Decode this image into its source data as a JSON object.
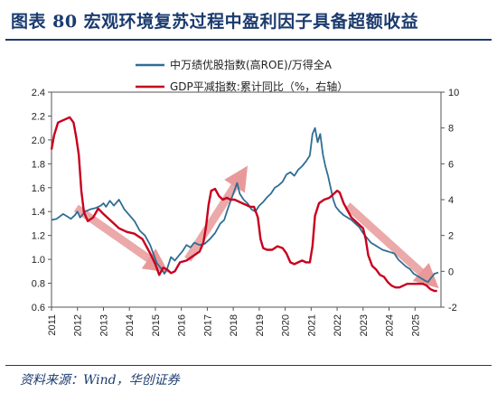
{
  "header": {
    "title": "图表 80   宏观环境复苏过程中盈利因子具备超额收益"
  },
  "source": {
    "text": "资料来源：Wind，华创证券"
  },
  "colors": {
    "index_line": "#2f6e93",
    "gdp_line": "#c8001e",
    "arrows": "#e89a9a",
    "title": "#1b3b6f"
  },
  "chart_data": {
    "type": "line",
    "x_axis": {
      "range": [
        2011,
        2026
      ],
      "ticks": [
        "2011",
        "2012",
        "2013",
        "2014",
        "2015",
        "2016",
        "2017",
        "2018",
        "2019",
        "2020",
        "2021",
        "2022",
        "2023",
        "2024",
        "2025"
      ]
    },
    "y_left": {
      "range": [
        0.6,
        2.4
      ],
      "ticks": [
        "0.6",
        "0.8",
        "1.0",
        "1.2",
        "1.4",
        "1.6",
        "1.8",
        "2.0",
        "2.2",
        "2.4"
      ]
    },
    "y_right": {
      "range": [
        -2,
        10
      ],
      "ticks": [
        "-2",
        "0",
        "2",
        "4",
        "6",
        "8",
        "10"
      ]
    },
    "legend": {
      "position": "top-center"
    },
    "series": [
      {
        "name": "中万绩优股指数(高ROE)/万得全A",
        "axis": "left",
        "points": [
          [
            2011.0,
            1.33
          ],
          [
            2011.2,
            1.34
          ],
          [
            2011.45,
            1.38
          ],
          [
            2011.6,
            1.36
          ],
          [
            2011.75,
            1.34
          ],
          [
            2011.9,
            1.37
          ],
          [
            2012.0,
            1.4
          ],
          [
            2012.1,
            1.35
          ],
          [
            2012.3,
            1.4
          ],
          [
            2012.5,
            1.42
          ],
          [
            2012.7,
            1.43
          ],
          [
            2012.9,
            1.45
          ],
          [
            2013.0,
            1.47
          ],
          [
            2013.1,
            1.44
          ],
          [
            2013.25,
            1.49
          ],
          [
            2013.4,
            1.45
          ],
          [
            2013.6,
            1.5
          ],
          [
            2013.8,
            1.42
          ],
          [
            2014.0,
            1.37
          ],
          [
            2014.2,
            1.32
          ],
          [
            2014.4,
            1.24
          ],
          [
            2014.6,
            1.2
          ],
          [
            2014.8,
            1.12
          ],
          [
            2014.95,
            1.03
          ],
          [
            2015.05,
            0.97
          ],
          [
            2015.2,
            0.93
          ],
          [
            2015.35,
            0.88
          ],
          [
            2015.45,
            0.92
          ],
          [
            2015.6,
            1.02
          ],
          [
            2015.75,
            0.99
          ],
          [
            2015.9,
            1.03
          ],
          [
            2016.05,
            1.07
          ],
          [
            2016.2,
            1.12
          ],
          [
            2016.35,
            1.1
          ],
          [
            2016.5,
            1.14
          ],
          [
            2016.7,
            1.12
          ],
          [
            2016.9,
            1.13
          ],
          [
            2017.1,
            1.17
          ],
          [
            2017.3,
            1.22
          ],
          [
            2017.5,
            1.3
          ],
          [
            2017.65,
            1.33
          ],
          [
            2017.8,
            1.43
          ],
          [
            2017.95,
            1.52
          ],
          [
            2018.05,
            1.58
          ],
          [
            2018.15,
            1.64
          ],
          [
            2018.25,
            1.55
          ],
          [
            2018.4,
            1.5
          ],
          [
            2018.55,
            1.47
          ],
          [
            2018.7,
            1.42
          ],
          [
            2018.85,
            1.4
          ],
          [
            2019.0,
            1.45
          ],
          [
            2019.15,
            1.48
          ],
          [
            2019.3,
            1.52
          ],
          [
            2019.45,
            1.55
          ],
          [
            2019.6,
            1.6
          ],
          [
            2019.75,
            1.62
          ],
          [
            2019.9,
            1.65
          ],
          [
            2020.05,
            1.71
          ],
          [
            2020.2,
            1.73
          ],
          [
            2020.35,
            1.7
          ],
          [
            2020.5,
            1.75
          ],
          [
            2020.65,
            1.78
          ],
          [
            2020.8,
            1.82
          ],
          [
            2020.95,
            1.87
          ],
          [
            2021.05,
            2.05
          ],
          [
            2021.15,
            2.1
          ],
          [
            2021.25,
            1.98
          ],
          [
            2021.35,
            2.05
          ],
          [
            2021.45,
            1.88
          ],
          [
            2021.55,
            1.78
          ],
          [
            2021.65,
            1.7
          ],
          [
            2021.75,
            1.6
          ],
          [
            2021.85,
            1.5
          ],
          [
            2021.95,
            1.44
          ],
          [
            2022.1,
            1.4
          ],
          [
            2022.25,
            1.37
          ],
          [
            2022.4,
            1.35
          ],
          [
            2022.55,
            1.33
          ],
          [
            2022.7,
            1.3
          ],
          [
            2022.85,
            1.27
          ],
          [
            2023.0,
            1.22
          ],
          [
            2023.15,
            1.18
          ],
          [
            2023.3,
            1.14
          ],
          [
            2023.45,
            1.12
          ],
          [
            2023.6,
            1.1
          ],
          [
            2023.75,
            1.08
          ],
          [
            2023.9,
            1.07
          ],
          [
            2024.05,
            1.06
          ],
          [
            2024.2,
            1.05
          ],
          [
            2024.35,
            1.0
          ],
          [
            2024.5,
            0.97
          ],
          [
            2024.65,
            0.94
          ],
          [
            2024.8,
            0.92
          ],
          [
            2024.95,
            0.88
          ],
          [
            2025.1,
            0.86
          ],
          [
            2025.25,
            0.84
          ],
          [
            2025.4,
            0.82
          ],
          [
            2025.5,
            0.81
          ],
          [
            2025.6,
            0.84
          ],
          [
            2025.75,
            0.88
          ],
          [
            2025.9,
            0.89
          ]
        ]
      },
      {
        "name": "GDP平减指数:累计同比（%，右轴）",
        "axis": "right",
        "points": [
          [
            2011.0,
            6.8
          ],
          [
            2011.1,
            7.6
          ],
          [
            2011.25,
            8.3
          ],
          [
            2011.4,
            8.4
          ],
          [
            2011.55,
            8.5
          ],
          [
            2011.7,
            8.6
          ],
          [
            2011.85,
            8.3
          ],
          [
            2011.95,
            7.5
          ],
          [
            2012.05,
            6.5
          ],
          [
            2012.15,
            4.5
          ],
          [
            2012.25,
            3.3
          ],
          [
            2012.4,
            2.8
          ],
          [
            2012.6,
            3.0
          ],
          [
            2012.8,
            3.5
          ],
          [
            2013.0,
            3.2
          ],
          [
            2013.3,
            2.8
          ],
          [
            2013.6,
            2.4
          ],
          [
            2013.9,
            2.2
          ],
          [
            2014.2,
            2.1
          ],
          [
            2014.5,
            1.8
          ],
          [
            2014.8,
            1.0
          ],
          [
            2015.0,
            0.4
          ],
          [
            2015.15,
            -0.2
          ],
          [
            2015.3,
            0.2
          ],
          [
            2015.45,
            0.1
          ],
          [
            2015.6,
            -0.1
          ],
          [
            2015.75,
            0.0
          ],
          [
            2015.95,
            0.5
          ],
          [
            2016.2,
            0.6
          ],
          [
            2016.5,
            0.9
          ],
          [
            2016.7,
            1.1
          ],
          [
            2016.85,
            1.6
          ],
          [
            2016.95,
            2.5
          ],
          [
            2017.05,
            3.7
          ],
          [
            2017.15,
            4.5
          ],
          [
            2017.3,
            4.6
          ],
          [
            2017.45,
            4.2
          ],
          [
            2017.6,
            4.0
          ],
          [
            2017.75,
            4.1
          ],
          [
            2017.9,
            4.0
          ],
          [
            2018.05,
            4.0
          ],
          [
            2018.2,
            3.9
          ],
          [
            2018.35,
            3.8
          ],
          [
            2018.5,
            3.7
          ],
          [
            2018.65,
            3.6
          ],
          [
            2018.8,
            3.6
          ],
          [
            2018.95,
            3.0
          ],
          [
            2019.05,
            1.8
          ],
          [
            2019.15,
            1.3
          ],
          [
            2019.3,
            1.2
          ],
          [
            2019.5,
            1.2
          ],
          [
            2019.7,
            1.4
          ],
          [
            2019.9,
            1.3
          ],
          [
            2020.05,
            1.0
          ],
          [
            2020.2,
            0.5
          ],
          [
            2020.35,
            0.4
          ],
          [
            2020.5,
            0.5
          ],
          [
            2020.65,
            0.6
          ],
          [
            2020.8,
            0.5
          ],
          [
            2020.95,
            0.5
          ],
          [
            2021.05,
            1.4
          ],
          [
            2021.15,
            3.1
          ],
          [
            2021.3,
            3.8
          ],
          [
            2021.5,
            4.0
          ],
          [
            2021.7,
            4.1
          ],
          [
            2021.85,
            4.3
          ],
          [
            2022.0,
            4.5
          ],
          [
            2022.1,
            4.4
          ],
          [
            2022.25,
            3.8
          ],
          [
            2022.4,
            3.4
          ],
          [
            2022.55,
            3.0
          ],
          [
            2022.7,
            2.8
          ],
          [
            2022.85,
            2.6
          ],
          [
            2023.0,
            2.4
          ],
          [
            2023.1,
            1.8
          ],
          [
            2023.2,
            0.9
          ],
          [
            2023.35,
            0.3
          ],
          [
            2023.5,
            0.1
          ],
          [
            2023.65,
            -0.2
          ],
          [
            2023.8,
            -0.3
          ],
          [
            2023.95,
            -0.6
          ],
          [
            2024.1,
            -0.8
          ],
          [
            2024.25,
            -0.9
          ],
          [
            2024.4,
            -0.9
          ],
          [
            2024.55,
            -0.8
          ],
          [
            2024.7,
            -0.7
          ],
          [
            2024.85,
            -0.7
          ],
          [
            2025.0,
            -0.7
          ],
          [
            2025.15,
            -0.7
          ],
          [
            2025.3,
            -0.7
          ],
          [
            2025.45,
            -0.8
          ],
          [
            2025.6,
            -1.0
          ],
          [
            2025.75,
            -1.1
          ],
          [
            2025.85,
            -1.1
          ]
        ]
      }
    ],
    "annotations": [
      {
        "type": "arrow",
        "from": [
          2011.95,
          1.43
        ],
        "to": [
          2015.05,
          0.96
        ]
      },
      {
        "type": "arrow",
        "from": [
          2016.25,
          1.0
        ],
        "to": [
          2018.25,
          1.68
        ]
      },
      {
        "type": "arrow",
        "from": [
          2022.4,
          1.45
        ],
        "to": [
          2025.5,
          0.84
        ]
      }
    ]
  }
}
